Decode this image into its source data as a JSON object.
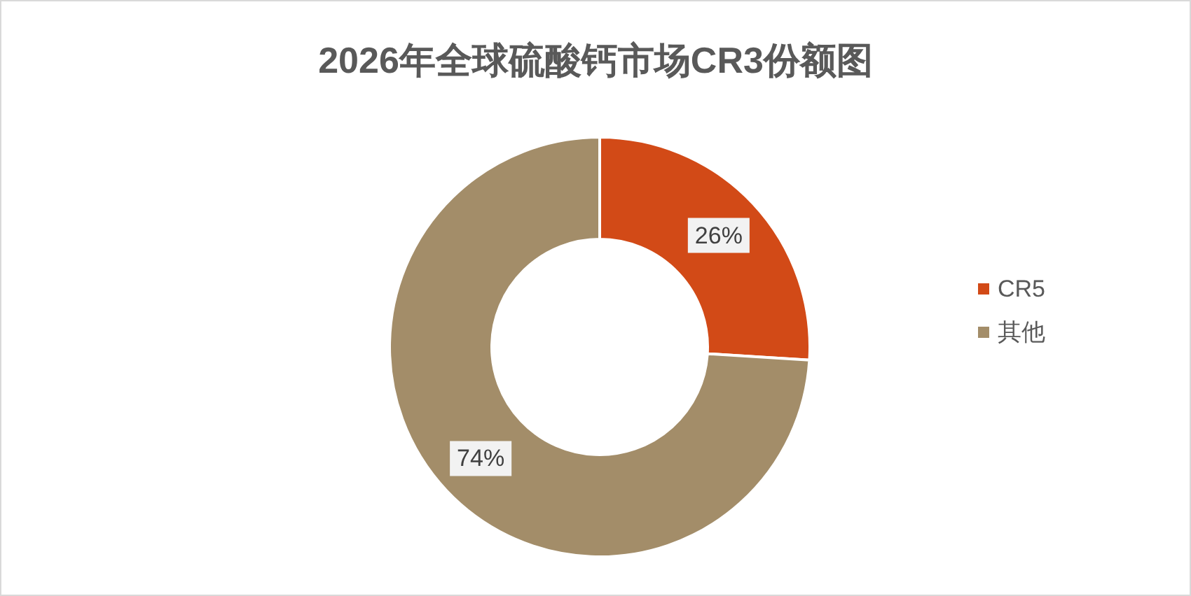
{
  "chart_data": {
    "type": "donut",
    "title": "2026年全球硫酸钙市场CR3份额图",
    "categories": [
      "CR5",
      "其他"
    ],
    "values": [
      26,
      74
    ],
    "colors": [
      "#d24a17",
      "#a38d69"
    ],
    "value_labels": [
      "26%",
      "74%"
    ],
    "legend": "right"
  }
}
